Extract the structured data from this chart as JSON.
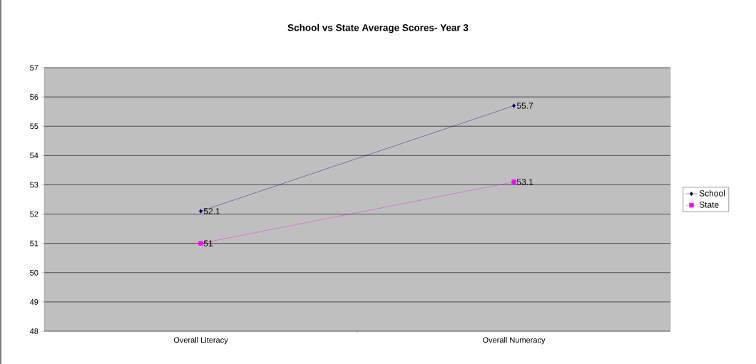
{
  "chart_data": {
    "type": "line",
    "title": "School vs State Average Scores- Year 3",
    "categories": [
      "Overall Literacy",
      "Overall Numeracy"
    ],
    "series": [
      {
        "name": "School",
        "color": "#000080",
        "marker": "diamond",
        "values": [
          52.1,
          55.7
        ]
      },
      {
        "name": "State",
        "color": "#ff00ff",
        "marker": "square",
        "values": [
          51,
          53.1
        ]
      }
    ],
    "ylim": [
      48,
      57
    ],
    "yticks": [
      48,
      49,
      50,
      51,
      52,
      53,
      54,
      55,
      56,
      57
    ],
    "grid": "y",
    "legend": "right",
    "data_labels": true
  }
}
